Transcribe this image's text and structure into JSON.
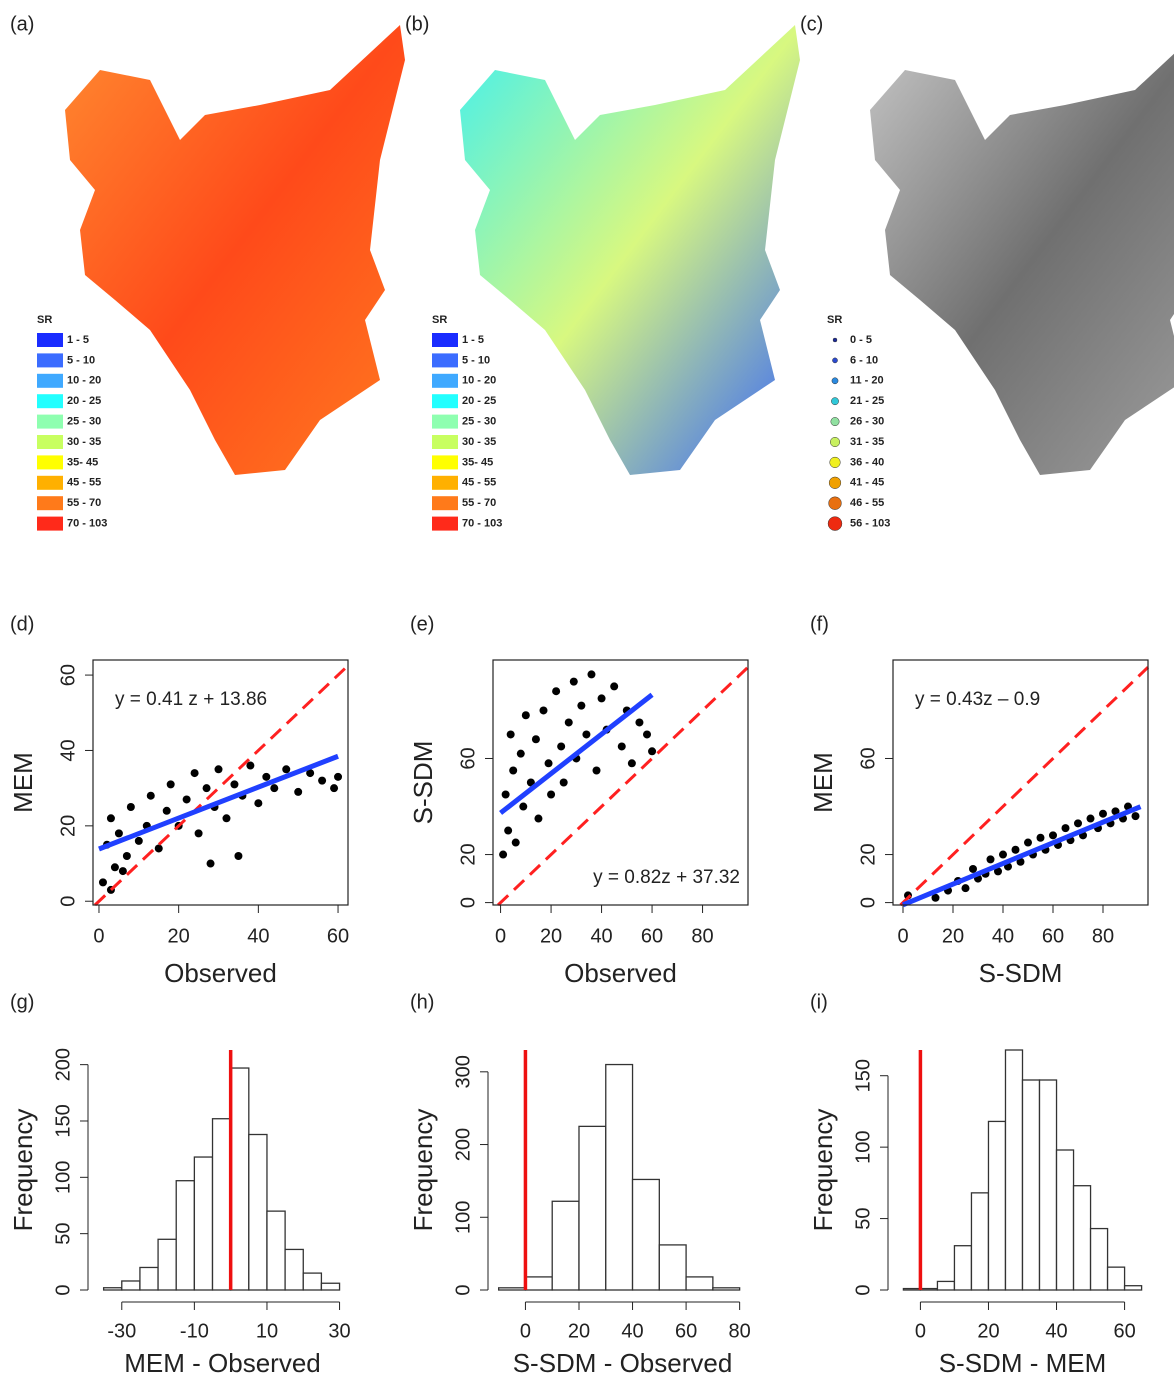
{
  "maps": [
    {
      "label": "(a)",
      "legend": {
        "title": "SR",
        "items": [
          {
            "label": "1 - 5",
            "color": "#1a2cff"
          },
          {
            "label": "5 - 10",
            "color": "#3b6cff"
          },
          {
            "label": "10 - 20",
            "color": "#3fa9ff"
          },
          {
            "label": "20 - 25",
            "color": "#22ffff"
          },
          {
            "label": "25 - 30",
            "color": "#8effb0"
          },
          {
            "label": "30 - 35",
            "color": "#c8ff60"
          },
          {
            "label": "35- 45",
            "color": "#ffff00"
          },
          {
            "label": "45 - 55",
            "color": "#ffb000"
          },
          {
            "label": "55 - 70",
            "color": "#ff7a1a"
          },
          {
            "label": "70 - 103",
            "color": "#ff2a1a"
          }
        ]
      }
    },
    {
      "label": "(b)",
      "legend": {
        "title": "SR",
        "items": [
          {
            "label": "1 - 5",
            "color": "#1a2cff"
          },
          {
            "label": "5 - 10",
            "color": "#3b6cff"
          },
          {
            "label": "10 - 20",
            "color": "#3fa9ff"
          },
          {
            "label": "20 - 25",
            "color": "#22ffff"
          },
          {
            "label": "25 - 30",
            "color": "#8effb0"
          },
          {
            "label": "30 - 35",
            "color": "#c8ff60"
          },
          {
            "label": "35- 45",
            "color": "#ffff00"
          },
          {
            "label": "45 - 55",
            "color": "#ffb000"
          },
          {
            "label": "55 - 70",
            "color": "#ff7a1a"
          },
          {
            "label": "70 - 103",
            "color": "#ff2a1a"
          }
        ]
      }
    },
    {
      "label": "(c)",
      "legend": {
        "title": "SR",
        "items": [
          {
            "label": "0 - 5",
            "color": "#1a2a9a"
          },
          {
            "label": "6 - 10",
            "color": "#2a4ad0"
          },
          {
            "label": "11 - 20",
            "color": "#2a8ae0"
          },
          {
            "label": "21 - 25",
            "color": "#30c8d8"
          },
          {
            "label": "26 - 30",
            "color": "#90e0a0"
          },
          {
            "label": "31 - 35",
            "color": "#c8f060"
          },
          {
            "label": "36 - 40",
            "color": "#f0f020"
          },
          {
            "label": "41 - 45",
            "color": "#f0a000"
          },
          {
            "label": "46 - 55",
            "color": "#e87010"
          },
          {
            "label": "56 - 103",
            "color": "#ee2a10"
          }
        ]
      }
    }
  ],
  "chart_data": [
    {
      "type": "scatter",
      "label": "(d)",
      "xlabel": "Observed",
      "ylabel": "MEM",
      "annotation": "y = 0.41 z + 13.86",
      "xlim": [
        -1.5,
        62.5
      ],
      "ylim": [
        -1,
        64
      ],
      "xticks": [
        0,
        20,
        40,
        60
      ],
      "yticks": [
        0,
        20,
        40,
        60
      ],
      "color": "#000000",
      "x": [
        1,
        2,
        3,
        4,
        5,
        7,
        8,
        10,
        12,
        13,
        15,
        17,
        18,
        20,
        22,
        24,
        25,
        27,
        29,
        30,
        32,
        34,
        36,
        38,
        40,
        42,
        44,
        47,
        50,
        53,
        56,
        59,
        60,
        3,
        6,
        35,
        28
      ],
      "values": [
        5,
        15,
        22,
        9,
        18,
        12,
        25,
        16,
        20,
        28,
        14,
        24,
        31,
        20,
        27,
        34,
        18,
        30,
        25,
        35,
        22,
        31,
        28,
        36,
        26,
        33,
        30,
        35,
        29,
        34,
        32,
        30,
        33,
        3,
        8,
        12,
        10
      ],
      "fit": {
        "slope": 0.41,
        "intercept": 13.86,
        "x": [
          0,
          60
        ],
        "color": "#2040ff"
      },
      "identity_color": "#ff2020"
    },
    {
      "type": "scatter",
      "label": "(e)",
      "xlabel": "Observed",
      "ylabel": "S-SDM",
      "annotation": "y = 0.82z + 37.32",
      "xlim": [
        -3,
        98
      ],
      "ylim": [
        -1,
        101
      ],
      "xticks": [
        0,
        20,
        40,
        60,
        80
      ],
      "yticks": [
        0,
        20,
        60
      ],
      "color": "#000000",
      "x": [
        1,
        2,
        3,
        4,
        5,
        6,
        8,
        9,
        10,
        12,
        14,
        15,
        17,
        19,
        20,
        22,
        24,
        25,
        27,
        29,
        30,
        32,
        34,
        36,
        38,
        40,
        42,
        45,
        48,
        50,
        52,
        55,
        58,
        60
      ],
      "values": [
        20,
        45,
        30,
        70,
        55,
        25,
        62,
        40,
        78,
        50,
        68,
        35,
        80,
        58,
        45,
        88,
        65,
        50,
        75,
        92,
        60,
        82,
        70,
        95,
        55,
        85,
        72,
        90,
        65,
        80,
        58,
        75,
        70,
        63
      ],
      "fit": {
        "slope": 0.82,
        "intercept": 37.32,
        "x": [
          0,
          60
        ],
        "color": "#2040ff"
      },
      "identity_color": "#ff2020"
    },
    {
      "type": "scatter",
      "label": "(f)",
      "xlabel": "S-SDM",
      "ylabel": "MEM",
      "annotation": "y = 0.43z – 0.9",
      "xlim": [
        -4,
        98
      ],
      "ylim": [
        -1,
        101
      ],
      "xticks": [
        0,
        20,
        40,
        60,
        80
      ],
      "yticks": [
        0,
        20,
        60
      ],
      "color": "#000000",
      "x": [
        2,
        13,
        18,
        22,
        25,
        28,
        30,
        33,
        35,
        38,
        40,
        42,
        45,
        47,
        50,
        52,
        55,
        57,
        60,
        62,
        65,
        67,
        70,
        72,
        75,
        78,
        80,
        83,
        85,
        88,
        90,
        93
      ],
      "values": [
        3,
        2,
        5,
        9,
        6,
        14,
        10,
        12,
        18,
        13,
        20,
        15,
        22,
        17,
        25,
        20,
        27,
        22,
        28,
        24,
        31,
        26,
        33,
        28,
        35,
        31,
        37,
        33,
        38,
        35,
        40,
        36
      ],
      "fit": {
        "slope": 0.43,
        "intercept": -0.9,
        "x": [
          0,
          95
        ],
        "color": "#2040ff"
      },
      "identity_color": "#ff2020"
    },
    {
      "type": "histogram",
      "label": "(g)",
      "xlabel": "MEM - Observed",
      "ylabel": "Frequency",
      "xlim": [
        -36,
        31.5
      ],
      "ylim": [
        0,
        213
      ],
      "xticks": [
        -30,
        -10,
        10,
        30
      ],
      "yticks": [
        0,
        50,
        100,
        150,
        200
      ],
      "bins": [
        -35,
        -30,
        -25,
        -20,
        -15,
        -10,
        -5,
        0,
        5,
        10,
        15,
        20,
        25,
        30
      ],
      "values": [
        2,
        8,
        20,
        45,
        97,
        118,
        152,
        197,
        138,
        70,
        36,
        15,
        6
      ],
      "vline": 0,
      "vline_color": "#ee1010"
    },
    {
      "type": "histogram",
      "label": "(h)",
      "xlabel": "S-SDM - Observed",
      "ylabel": "Frequency",
      "xlim": [
        -9.5,
        82
      ],
      "ylim": [
        0,
        330
      ],
      "xticks": [
        0,
        20,
        40,
        60,
        80
      ],
      "yticks": [
        0,
        100,
        200,
        300
      ],
      "bins": [
        -10,
        0,
        10,
        20,
        30,
        40,
        50,
        60,
        70,
        80
      ],
      "values": [
        3,
        18,
        122,
        225,
        310,
        152,
        62,
        18,
        3
      ],
      "vline": 0,
      "vline_color": "#ee1010"
    },
    {
      "type": "histogram",
      "label": "(i)",
      "xlabel": "S-SDM - MEM",
      "ylabel": "Frequency",
      "xlim": [
        -6,
        66
      ],
      "ylim": [
        0,
        168
      ],
      "xticks": [
        0,
        20,
        40,
        60
      ],
      "yticks": [
        0,
        50,
        100,
        150
      ],
      "bins": [
        -5,
        0,
        5,
        10,
        15,
        20,
        25,
        30,
        35,
        40,
        45,
        50,
        55,
        60,
        65
      ],
      "values": [
        1,
        1,
        6,
        31,
        68,
        118,
        168,
        147,
        147,
        98,
        73,
        43,
        16,
        3
      ],
      "vline": 0,
      "vline_color": "#ee1010"
    }
  ]
}
